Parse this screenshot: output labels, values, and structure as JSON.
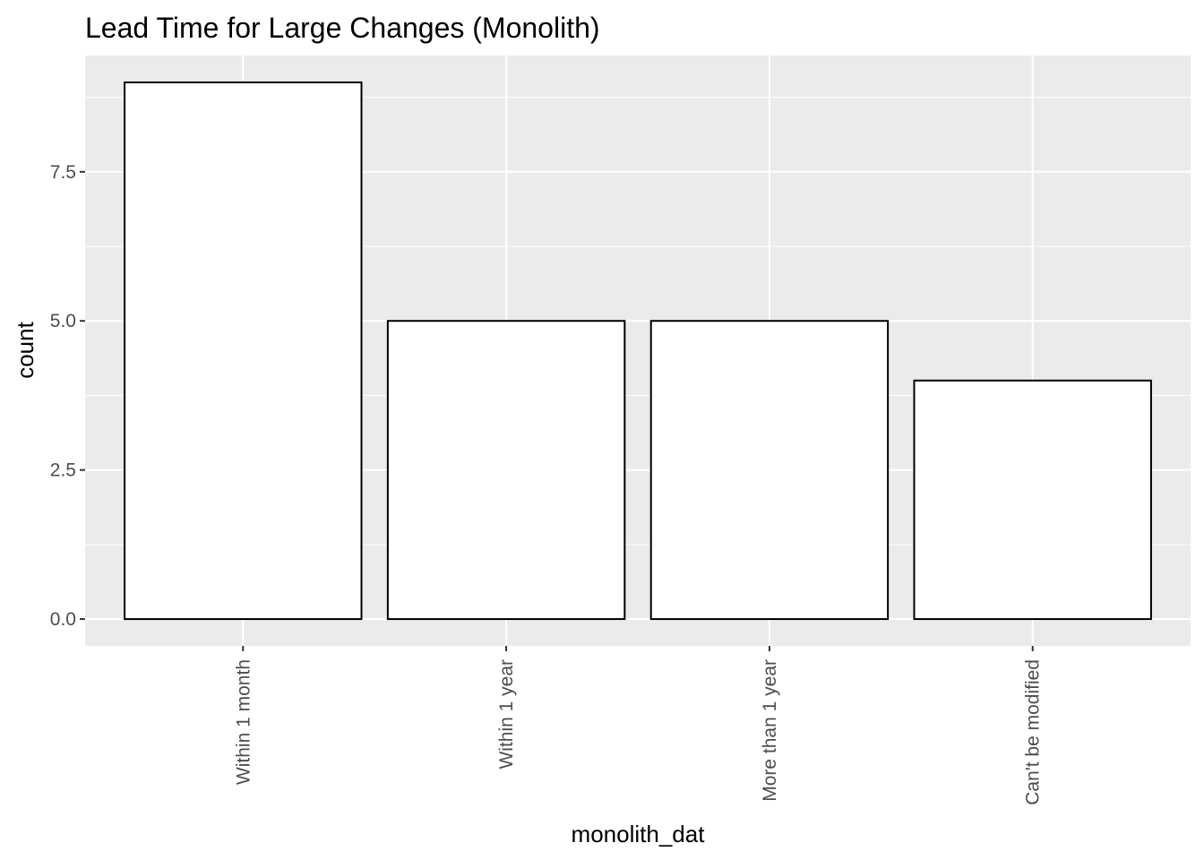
{
  "chart_data": {
    "type": "bar",
    "title": "Lead Time for Large Changes (Monolith)",
    "xlabel": "monolith_dat",
    "ylabel": "count",
    "categories": [
      "Within 1 month",
      "Within 1 year",
      "More than 1 year",
      "Can't be modified"
    ],
    "values": [
      9,
      5,
      5,
      4
    ],
    "ylim": [
      -0.45,
      9.45
    ],
    "y_ticks": [
      0,
      2.5,
      5,
      7.5
    ],
    "y_tick_labels": [
      "0.0",
      "2.5",
      "5.0",
      "7.5"
    ],
    "grid": true,
    "legend": "none",
    "colors": {
      "panel_background": "#ebebeb",
      "grid_major": "#ffffff",
      "bar_fill": "#ffffff",
      "bar_outline": "#000000",
      "tick_mark": "#333333"
    }
  }
}
